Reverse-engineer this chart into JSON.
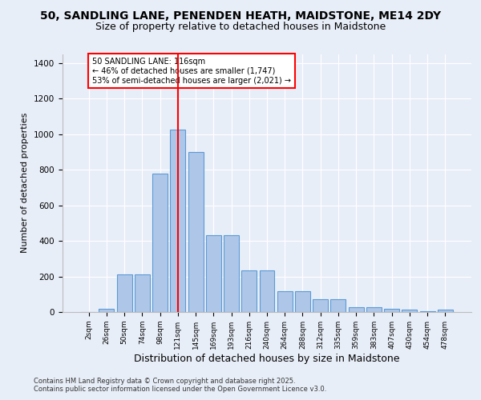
{
  "title1": "50, SANDLING LANE, PENENDEN HEATH, MAIDSTONE, ME14 2DY",
  "title2": "Size of property relative to detached houses in Maidstone",
  "xlabel": "Distribution of detached houses by size in Maidstone",
  "ylabel": "Number of detached properties",
  "categories": [
    "2sqm",
    "26sqm",
    "50sqm",
    "74sqm",
    "98sqm",
    "121sqm",
    "145sqm",
    "169sqm",
    "193sqm",
    "216sqm",
    "240sqm",
    "264sqm",
    "288sqm",
    "312sqm",
    "335sqm",
    "359sqm",
    "383sqm",
    "407sqm",
    "430sqm",
    "454sqm",
    "478sqm"
  ],
  "values": [
    0,
    20,
    210,
    210,
    780,
    1025,
    900,
    430,
    430,
    235,
    235,
    115,
    115,
    70,
    70,
    25,
    25,
    20,
    15,
    5,
    15
  ],
  "bar_color": "#aec6e8",
  "bar_edge_color": "#5b9bd5",
  "property_line_x": 5,
  "annotation_title": "50 SANDLING LANE: 116sqm",
  "annotation_line1": "← 46% of detached houses are smaller (1,747)",
  "annotation_line2": "53% of semi-detached houses are larger (2,021) →",
  "vline_color": "red",
  "annotation_box_color": "red",
  "bg_color": "#e8eef8",
  "footer1": "Contains HM Land Registry data © Crown copyright and database right 2025.",
  "footer2": "Contains public sector information licensed under the Open Government Licence v3.0.",
  "ylim": [
    0,
    1450
  ],
  "title_fontsize": 10,
  "subtitle_fontsize": 9,
  "xlabel_fontsize": 9,
  "ylabel_fontsize": 8
}
